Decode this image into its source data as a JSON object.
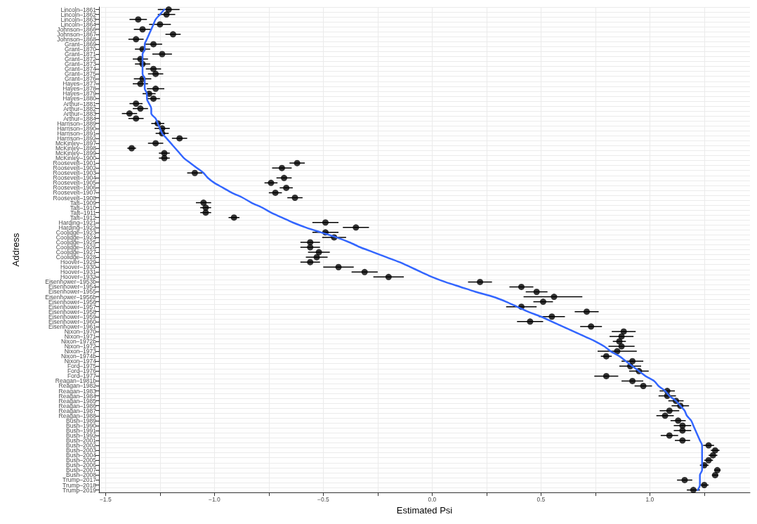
{
  "chart_data": {
    "type": "scatter",
    "orientation": "horizontal",
    "xlabel": "Estimated Psi",
    "ylabel": "Address",
    "categories": [
      "Lincoln–1861",
      "Lincoln–1862",
      "Lincoln–1863",
      "Lincoln–1864",
      "Johnson–1866",
      "Johnson–1867",
      "Johnson–1868",
      "Grant–1869",
      "Grant–1870",
      "Grant–1871",
      "Grant–1872",
      "Grant–1873",
      "Grant–1874",
      "Grant–1875",
      "Grant–1876",
      "Hayes–1877",
      "Hayes–1878",
      "Hayes–1879",
      "Hayes–1880",
      "Arthur–1881",
      "Arthur–1882",
      "Arthur–1883",
      "Arthur–1884",
      "Harrison–1889",
      "Harrison–1890",
      "Harrison–1891",
      "Harrison–1892",
      "McKinley–1897",
      "McKinley–1898",
      "McKinley–1899",
      "McKinley–1900",
      "Roosevelt–1901",
      "Roosevelt–1902",
      "Roosevelt–1903",
      "Roosevelt–1904",
      "Roosevelt–1905",
      "Roosevelt–1906",
      "Roosevelt–1907",
      "Roosevelt–1908",
      "Taft–1909",
      "Taft–1910",
      "Taft–1911",
      "Taft–1912",
      "Harding–1921",
      "Harding–1922",
      "Coolidge–1923",
      "Coolidge–1924",
      "Coolidge–1925",
      "Coolidge–1926",
      "Coolidge–1927",
      "Coolidge–1928",
      "Hoover–1929",
      "Hoover–1930",
      "Hoover–1931",
      "Hoover–1932",
      "Eisenhower–1953b",
      "Eisenhower–1954",
      "Eisenhower–1955",
      "Eisenhower–1956b",
      "Eisenhower–1956",
      "Eisenhower–1957",
      "Eisenhower–1958",
      "Eisenhower–1959",
      "Eisenhower–1960",
      "Eisenhower–1961",
      "Nixon–1970",
      "Nixon–1971",
      "Nixon–1972b",
      "Nixon–1972",
      "Nixon–1973",
      "Nixon–1974b",
      "Nixon–1974",
      "Ford–1975",
      "Ford–1976",
      "Ford–1977",
      "Reagan–1981b",
      "Reagan–1982",
      "Reagan–1983",
      "Reagan–1984",
      "Reagan–1985",
      "Reagan–1986",
      "Reagan–1987",
      "Reagan–1988",
      "Bush–1989",
      "Bush–1990",
      "Bush–1991",
      "Bush–1992",
      "Bush–2001",
      "Bush–2002",
      "Bush–2003",
      "Bush–2004",
      "Bush–2005",
      "Bush–2006",
      "Bush–2007",
      "Bush–2008",
      "Trump–2017",
      "Trump–2018",
      "Trump–2019"
    ],
    "xlim": [
      -1.53,
      1.46
    ],
    "xticks": [
      {
        "value": -1.5,
        "label": "−1.5"
      },
      {
        "value": -1.25,
        "label": null
      },
      {
        "value": -1,
        "label": "−1.0"
      },
      {
        "value": -0.75,
        "label": null
      },
      {
        "value": -0.5,
        "label": "−0.5"
      },
      {
        "value": -0.25,
        "label": null
      },
      {
        "value": 0,
        "label": "0.0"
      },
      {
        "value": 0.25,
        "label": null
      },
      {
        "value": 0.5,
        "label": "0.5"
      },
      {
        "value": 0.75,
        "label": null
      },
      {
        "value": 1,
        "label": "1.0"
      },
      {
        "value": 1.25,
        "label": null
      }
    ],
    "grid": true,
    "marker": "circle",
    "series": [
      {
        "color": "#000000",
        "values": [
          -1.21,
          -1.22,
          -1.35,
          -1.25,
          -1.33,
          -1.19,
          -1.36,
          -1.28,
          -1.33,
          -1.24,
          -1.34,
          -1.33,
          -1.28,
          -1.27,
          -1.33,
          -1.34,
          -1.27,
          -1.3,
          -1.28,
          -1.36,
          -1.34,
          -1.39,
          -1.36,
          -1.26,
          -1.24,
          -1.24,
          -1.16,
          -1.27,
          -1.38,
          -1.23,
          -1.23,
          -0.62,
          -0.69,
          -1.09,
          -0.68,
          -0.74,
          -0.67,
          -0.72,
          -0.63,
          -1.05,
          -1.04,
          -1.04,
          -0.91,
          -0.49,
          -0.35,
          -0.49,
          -0.45,
          -0.56,
          -0.56,
          -0.52,
          -0.53,
          -0.56,
          -0.43,
          -0.31,
          -0.2,
          0.22,
          0.41,
          0.48,
          0.56,
          0.51,
          0.41,
          0.71,
          0.55,
          0.45,
          0.73,
          0.88,
          0.87,
          0.86,
          0.87,
          0.85,
          0.8,
          0.92,
          0.91,
          0.95,
          0.8,
          0.92,
          0.97,
          1.08,
          1.08,
          1.12,
          1.14,
          1.09,
          1.07,
          1.13,
          1.15,
          1.15,
          1.09,
          1.15,
          1.27,
          1.3,
          1.29,
          1.27,
          1.25,
          1.31,
          1.3,
          1.16,
          1.25,
          1.2
        ],
        "errors": [
          0.05,
          0.04,
          0.04,
          0.05,
          0.04,
          0.035,
          0.035,
          0.04,
          0.035,
          0.045,
          0.035,
          0.035,
          0.035,
          0.035,
          0.04,
          0.035,
          0.04,
          0.03,
          0.03,
          0.03,
          0.035,
          0.035,
          0.035,
          0.03,
          0.035,
          0.03,
          0.035,
          0.035,
          0.02,
          0.025,
          0.025,
          0.035,
          0.045,
          0.035,
          0.035,
          0.03,
          0.03,
          0.03,
          0.035,
          0.035,
          0.025,
          0.025,
          0.025,
          0.06,
          0.06,
          0.06,
          0.055,
          0.045,
          0.045,
          0.05,
          0.05,
          0.045,
          0.07,
          0.06,
          0.07,
          0.055,
          0.055,
          0.05,
          [
            0.42,
            0.69
          ],
          0.045,
          0.07,
          0.055,
          0.06,
          0.06,
          0.05,
          0.055,
          0.055,
          0.03,
          0.06,
          0.09,
          0.025,
          0.05,
          0.05,
          0.045,
          0.055,
          0.05,
          0.04,
          0.035,
          0.04,
          0.035,
          0.04,
          0.045,
          0.04,
          0.035,
          0.04,
          0.04,
          0.04,
          0.035,
          0.025,
          0.02,
          0.02,
          0.02,
          0.02,
          0.015,
          0.015,
          0.035,
          0.02,
          0.03
        ]
      },
      {
        "type": "line",
        "color": "#3366ff",
        "marker": "none",
        "values": [
          -1.23,
          -1.25,
          -1.27,
          -1.28,
          -1.29,
          -1.3,
          -1.31,
          -1.32,
          -1.32,
          -1.33,
          -1.33,
          -1.33,
          -1.33,
          -1.33,
          -1.32,
          -1.32,
          -1.32,
          -1.31,
          -1.31,
          -1.3,
          -1.29,
          -1.29,
          -1.27,
          -1.26,
          -1.25,
          -1.24,
          -1.22,
          -1.2,
          -1.18,
          -1.16,
          -1.14,
          -1.11,
          -1.08,
          -1.05,
          -1.03,
          -1.0,
          -0.96,
          -0.92,
          -0.87,
          -0.83,
          -0.78,
          -0.74,
          -0.69,
          -0.64,
          -0.58,
          -0.51,
          -0.44,
          -0.38,
          -0.33,
          -0.27,
          -0.21,
          -0.15,
          -0.1,
          -0.05,
          0.0,
          0.06,
          0.13,
          0.2,
          0.28,
          0.34,
          0.39,
          0.44,
          0.5,
          0.55,
          0.6,
          0.65,
          0.7,
          0.75,
          0.79,
          0.82,
          0.86,
          0.89,
          0.92,
          0.95,
          0.98,
          1.02,
          1.04,
          1.07,
          1.09,
          1.12,
          1.14,
          1.16,
          1.17,
          1.19,
          1.2,
          1.21,
          1.22,
          1.23,
          1.24,
          1.24,
          1.24,
          1.24,
          1.24,
          1.24,
          1.23,
          1.23,
          1.23,
          1.22
        ]
      }
    ]
  }
}
